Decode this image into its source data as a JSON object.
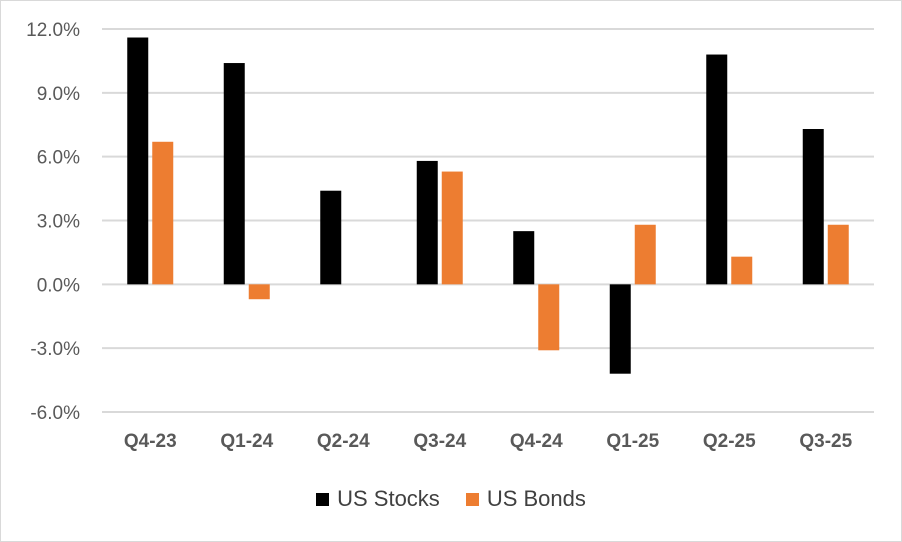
{
  "chart_data": {
    "type": "bar",
    "categories": [
      "Q4-23",
      "Q1-24",
      "Q2-24",
      "Q3-24",
      "Q4-24",
      "Q1-25",
      "Q2-25",
      "Q3-25"
    ],
    "series": [
      {
        "name": "US Stocks",
        "color": "#000000",
        "values": [
          11.6,
          10.4,
          4.4,
          5.8,
          2.5,
          -4.2,
          10.8,
          7.3
        ]
      },
      {
        "name": "US Bonds",
        "color": "#ED7D31",
        "values": [
          6.7,
          -0.7,
          0.0,
          5.3,
          -3.1,
          2.8,
          1.3,
          2.8
        ]
      }
    ],
    "yticks": [
      "12.0%",
      "9.0%",
      "6.0%",
      "3.0%",
      "0.0%",
      "-3.0%",
      "-6.0%"
    ],
    "ylim": [
      -6,
      12
    ],
    "grid": true,
    "legend": "bottom",
    "title": "",
    "xlabel": "",
    "ylabel": ""
  }
}
